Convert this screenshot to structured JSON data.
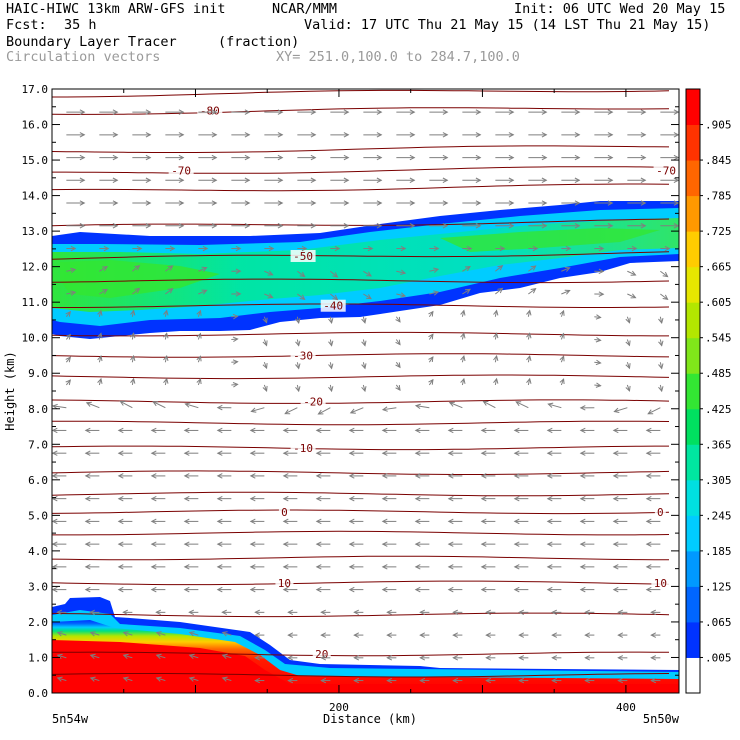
{
  "header": {
    "model": "HAIC-HIWC 13km ARW-GFS init",
    "org": "NCAR/MMM",
    "init": "Init: 06 UTC Wed 20 May 15",
    "fcst_label": "Fcst:",
    "fcst_value": "35 h",
    "valid": "Valid: 17 UTC Thu 21 May 15 (14 LST Thu 21 May 15)",
    "field": "Boundary Layer Tracer",
    "units": "(fraction)",
    "vectors": "Circulation vectors",
    "xy": "XY= 251.0,100.0 to 284.7,100.0"
  },
  "chart_data": {
    "type": "heatmap",
    "ylabel": "Height (km)",
    "xlabel": "Distance (km)",
    "x_left_label": "5n54w",
    "x_right_label": "5n50w",
    "xlim": [
      0,
      437
    ],
    "ylim": [
      0,
      17
    ],
    "y_ticks": [
      "0.0",
      "1.0",
      "2.0",
      "3.0",
      "4.0",
      "5.0",
      "6.0",
      "7.0",
      "8.0",
      "9.0",
      "10.0",
      "11.0",
      "12.0",
      "13.0",
      "14.0",
      "15.0",
      "16.0",
      "17.0"
    ],
    "x_ticks": [
      "200",
      "400"
    ],
    "x_tick_values": [
      200,
      400
    ],
    "colorbar": {
      "labels": [
        ".005",
        ".065",
        ".125",
        ".185",
        ".245",
        ".305",
        ".365",
        ".425",
        ".485",
        ".545",
        ".605",
        ".665",
        ".725",
        ".785",
        ".845",
        ".905"
      ],
      "colors": [
        "#ffffff",
        "#0033ff",
        "#0066ff",
        "#0099ff",
        "#00ccff",
        "#00e0e0",
        "#00e6a0",
        "#00e060",
        "#33e633",
        "#80e61a",
        "#b3e600",
        "#e6e600",
        "#ffcc00",
        "#ff9900",
        "#ff6600",
        "#ff3300",
        "#ff0000"
      ]
    },
    "temperature_contours": [
      {
        "label": "-80",
        "height_km": 16.4
      },
      {
        "label": "-70",
        "height_km": 14.7
      },
      {
        "label": "-50",
        "height_km": 12.3
      },
      {
        "label": "-40",
        "height_km": 10.9
      },
      {
        "label": "-30",
        "height_km": 9.5
      },
      {
        "label": "-20",
        "height_km": 8.2
      },
      {
        "label": "-10",
        "height_km": 6.9
      },
      {
        "label": "0",
        "height_km": 5.1
      },
      {
        "label": "10",
        "height_km": 3.1
      },
      {
        "label": "20",
        "height_km": 1.1
      }
    ],
    "contour_label_positions": [
      {
        "label": "-80",
        "x_km": 110
      },
      {
        "label": "-70",
        "x_km": 90
      },
      {
        "label": "-70",
        "x_km": 428
      },
      {
        "label": "-50",
        "x_km": 175
      },
      {
        "label": "-40",
        "x_km": 196
      },
      {
        "label": "-30",
        "x_km": 175
      },
      {
        "label": "-20",
        "x_km": 182
      },
      {
        "label": "-10",
        "x_km": 175
      },
      {
        "label": "0",
        "x_km": 162
      },
      {
        "label": "0",
        "x_km": 424
      },
      {
        "label": "10",
        "x_km": 162
      },
      {
        "label": "10",
        "x_km": 424
      },
      {
        "label": "20",
        "x_km": 188
      }
    ]
  }
}
